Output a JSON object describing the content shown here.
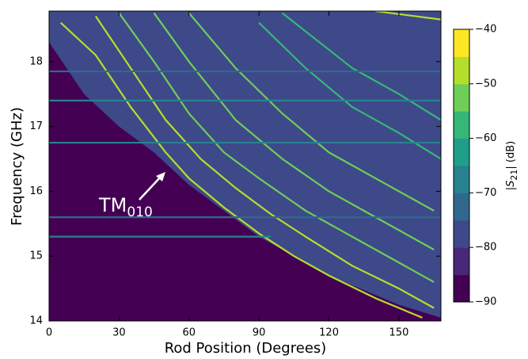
{
  "chart_data": {
    "type": "line",
    "xlabel": "Rod Position (Degrees)",
    "ylabel": "Frequency (GHz)",
    "xlim": [
      0,
      168
    ],
    "ylim": [
      14,
      18.78
    ],
    "xticks": [
      0,
      30,
      60,
      90,
      120,
      150
    ],
    "yticks": [
      14,
      15,
      16,
      17,
      18
    ],
    "background_color": "#440154",
    "region": {
      "color": "#3e4989",
      "x": [
        0,
        15,
        30,
        45,
        60,
        90,
        120,
        150,
        168
      ],
      "values": [
        18.3,
        17.5,
        17.0,
        16.6,
        16.1,
        15.3,
        14.7,
        14.25,
        14.05
      ]
    },
    "series": [
      {
        "color": "#b5de2b",
        "x": [
          5,
          20,
          35,
          50,
          60,
          75,
          90,
          105,
          120,
          140,
          160
        ],
        "values": [
          18.6,
          18.1,
          17.3,
          16.6,
          16.2,
          15.75,
          15.35,
          15.0,
          14.7,
          14.35,
          14.05
        ]
      },
      {
        "color": "#b5de2b",
        "x": [
          20,
          35,
          50,
          65,
          80,
          95,
          110,
          130,
          150,
          165
        ],
        "values": [
          18.7,
          17.9,
          17.1,
          16.5,
          16.05,
          15.65,
          15.3,
          14.85,
          14.5,
          14.2
        ]
      },
      {
        "color": "#6ece58",
        "x": [
          30,
          45,
          60,
          75,
          90,
          110,
          130,
          150,
          165
        ],
        "values": [
          18.75,
          18.0,
          17.2,
          16.6,
          16.2,
          15.7,
          15.3,
          14.9,
          14.6
        ]
      },
      {
        "color": "#6ece58",
        "x": [
          45,
          60,
          80,
          100,
          120,
          140,
          165
        ],
        "values": [
          18.75,
          18.0,
          17.1,
          16.5,
          16.0,
          15.6,
          15.1
        ]
      },
      {
        "color": "#6ece58",
        "x": [
          60,
          80,
          100,
          120,
          140,
          165
        ],
        "values": [
          18.75,
          17.9,
          17.2,
          16.6,
          16.2,
          15.7
        ]
      },
      {
        "color": "#35b779",
        "x": [
          90,
          110,
          130,
          150,
          168
        ],
        "values": [
          18.6,
          17.9,
          17.3,
          16.9,
          16.5
        ]
      },
      {
        "color": "#35b779",
        "x": [
          100,
          130,
          150,
          168
        ],
        "values": [
          18.75,
          17.9,
          17.5,
          17.1
        ]
      },
      {
        "color": "#b5de2b",
        "x": [
          140,
          168
        ],
        "values": [
          18.78,
          18.65
        ]
      },
      {
        "color": "#26828e",
        "x": [
          0,
          95
        ],
        "values": [
          15.3,
          15.3
        ]
      },
      {
        "color": "#31688e",
        "x": [
          0,
          168
        ],
        "values": [
          15.6,
          15.6
        ]
      },
      {
        "color": "#26828e",
        "x": [
          0,
          168
        ],
        "values": [
          16.75,
          16.75
        ]
      },
      {
        "color": "#26828e",
        "x": [
          0,
          168
        ],
        "values": [
          17.4,
          17.4
        ]
      },
      {
        "color": "#31688e",
        "x": [
          0,
          168
        ],
        "values": [
          17.85,
          17.85
        ]
      }
    ],
    "colorbar": {
      "label_parts": [
        "|S",
        "21",
        "| (dB)"
      ],
      "lim": [
        -90,
        -40
      ],
      "ticks": [
        {
          "value": -90,
          "label": "−90"
        },
        {
          "value": -80,
          "label": "−80"
        },
        {
          "value": -70,
          "label": "−70"
        },
        {
          "value": -60,
          "label": "−60"
        },
        {
          "value": -50,
          "label": "−50"
        },
        {
          "value": -40,
          "label": "−40"
        }
      ],
      "colors": [
        "#440154",
        "#482878",
        "#3e4989",
        "#31688e",
        "#26828e",
        "#1f9e89",
        "#35b779",
        "#6ece58",
        "#b5de2b",
        "#fde725"
      ]
    },
    "annotation": {
      "text": "TM",
      "subscript": "010"
    }
  }
}
